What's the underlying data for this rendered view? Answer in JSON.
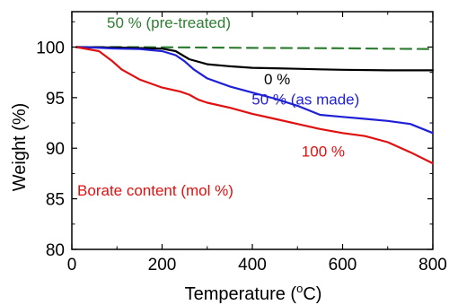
{
  "chart_data": {
    "type": "line",
    "title": "",
    "xlabel": "Temperature (",
    "xlabel_sup": "o",
    "xlabel_unit": "C)",
    "ylabel": "Weight (%)",
    "xlim": [
      0,
      800
    ],
    "ylim": [
      80,
      103.5
    ],
    "grid": false,
    "legend": "none",
    "x_ticks": [
      0,
      200,
      400,
      600,
      800
    ],
    "x_tick_labels": [
      "0",
      "200",
      "400",
      "600",
      "800"
    ],
    "y_ticks": [
      80,
      85,
      90,
      95,
      100
    ],
    "y_tick_labels": [
      "80",
      "85",
      "90",
      "95",
      "100"
    ],
    "series": [
      {
        "key": "pretreated",
        "color": "#2e7d32",
        "dash": "dashed",
        "x": [
          10,
          100,
          200,
          300,
          400,
          500,
          600,
          700,
          800
        ],
        "y": [
          100.0,
          100.0,
          99.98,
          99.95,
          99.92,
          99.9,
          99.88,
          99.84,
          99.8
        ]
      },
      {
        "key": "zero",
        "color": "#000000",
        "dash": "solid",
        "x": [
          10,
          100,
          200,
          230,
          260,
          300,
          350,
          400,
          450,
          500,
          550,
          600,
          700,
          800
        ],
        "y": [
          100.0,
          99.95,
          99.85,
          99.6,
          98.8,
          98.3,
          98.1,
          97.95,
          97.9,
          97.85,
          97.8,
          97.75,
          97.7,
          97.7
        ]
      },
      {
        "key": "as_made",
        "color": "#1f1fd6",
        "dash": "solid",
        "x": [
          10,
          50,
          100,
          150,
          200,
          230,
          250,
          270,
          300,
          350,
          400,
          450,
          500,
          550,
          600,
          650,
          700,
          750,
          800
        ],
        "y": [
          100.0,
          99.95,
          99.85,
          99.8,
          99.6,
          99.2,
          98.6,
          97.8,
          96.9,
          96.1,
          95.5,
          94.9,
          94.2,
          93.3,
          93.1,
          92.9,
          92.7,
          92.4,
          91.5
        ]
      },
      {
        "key": "hundred",
        "color": "#e01010",
        "dash": "solid",
        "x": [
          10,
          60,
          90,
          110,
          150,
          200,
          240,
          260,
          280,
          300,
          350,
          400,
          450,
          500,
          550,
          600,
          650,
          700,
          750,
          800
        ],
        "y": [
          100.0,
          99.6,
          98.6,
          97.8,
          96.8,
          96.0,
          95.6,
          95.3,
          94.8,
          94.5,
          94.0,
          93.4,
          92.9,
          92.4,
          91.9,
          91.5,
          91.2,
          90.6,
          89.6,
          88.5
        ]
      }
    ],
    "annotations": [
      {
        "key": "pretreated",
        "text": "50 % (pre-treated)",
        "color": "#2e7d32",
        "x": 215,
        "y": 101.9
      },
      {
        "key": "zero",
        "text": "0 %",
        "color": "#000000",
        "x": 455,
        "y": 96.3
      },
      {
        "key": "as_made",
        "text": "50 % (as made)",
        "color": "#1f1fd6",
        "x": 518,
        "y": 94.3
      },
      {
        "key": "hundred",
        "text": "100 %",
        "color": "#e01010",
        "x": 557,
        "y": 89.2
      },
      {
        "key": "borate",
        "text": "Borate content (mol %)",
        "color": "#e01010",
        "x": 185,
        "y": 85.3
      }
    ]
  }
}
